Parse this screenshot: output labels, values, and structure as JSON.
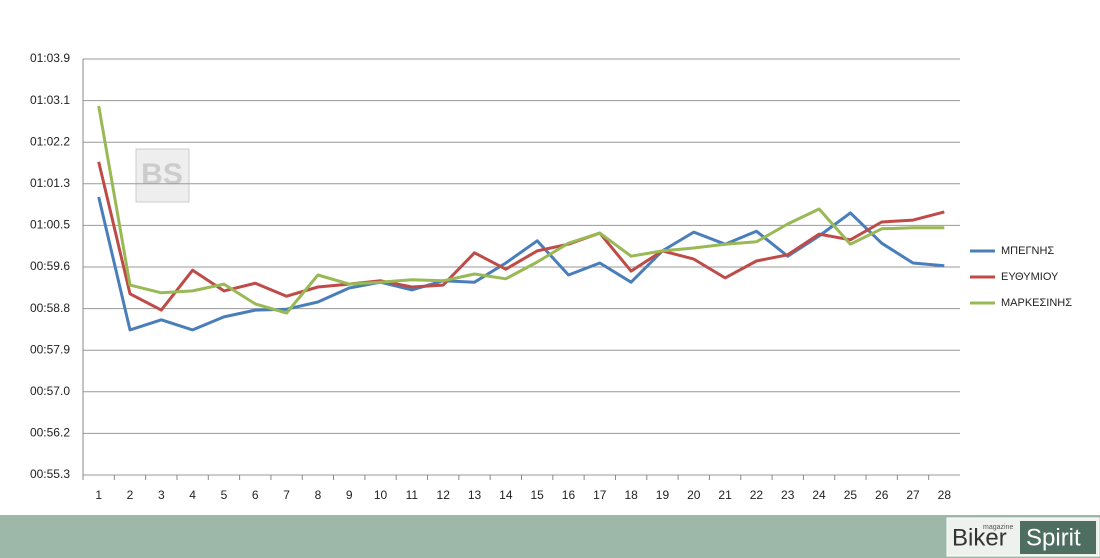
{
  "chart_data": {
    "type": "line",
    "categories": [
      "1",
      "2",
      "3",
      "4",
      "5",
      "6",
      "7",
      "8",
      "9",
      "10",
      "11",
      "12",
      "13",
      "14",
      "15",
      "16",
      "17",
      "18",
      "19",
      "20",
      "21",
      "22",
      "23",
      "24",
      "25",
      "26",
      "27",
      "28"
    ],
    "series": [
      {
        "name": "ΜΠΕΓΝΗΣ",
        "color": "#4a7ebb",
        "values": [
          61.07,
          58.31,
          58.52,
          58.31,
          58.58,
          58.72,
          58.74,
          58.89,
          59.18,
          59.3,
          59.14,
          59.33,
          59.3,
          59.7,
          60.16,
          59.45,
          59.7,
          59.3,
          59.95,
          60.34,
          60.09,
          60.36,
          59.84,
          60.26,
          60.74,
          60.11,
          59.7,
          59.64
        ]
      },
      {
        "name": "ΕΥΘΥΜΙΟΥ",
        "color": "#be4b48",
        "values": [
          61.8,
          59.06,
          58.72,
          59.55,
          59.12,
          59.28,
          59.01,
          59.2,
          59.26,
          59.33,
          59.2,
          59.24,
          59.91,
          59.57,
          59.95,
          60.09,
          60.32,
          59.53,
          59.95,
          59.78,
          59.39,
          59.74,
          59.87,
          60.3,
          60.18,
          60.55,
          60.59,
          60.76
        ]
      },
      {
        "name": "ΜΑΡΚΕΣΙΝΗΣ",
        "color": "#98b954",
        "values": [
          62.96,
          59.24,
          59.08,
          59.12,
          59.26,
          58.85,
          58.66,
          59.45,
          59.26,
          59.3,
          59.35,
          59.33,
          59.47,
          59.37,
          59.72,
          60.11,
          60.32,
          59.84,
          59.95,
          60.01,
          60.09,
          60.14,
          60.51,
          60.82,
          60.09,
          60.41,
          60.43,
          60.43
        ]
      }
    ],
    "ylim": [
      55.296,
      63.936
    ],
    "yticks": [
      {
        "value": 55.296,
        "label": "00:55.3"
      },
      {
        "value": 56.16,
        "label": "00:56.2"
      },
      {
        "value": 57.024,
        "label": "00:57.0"
      },
      {
        "value": 57.888,
        "label": "00:57.9"
      },
      {
        "value": 58.752,
        "label": "00:58.8"
      },
      {
        "value": 59.616,
        "label": "00:59.6"
      },
      {
        "value": 60.48,
        "label": "01:00.5"
      },
      {
        "value": 61.344,
        "label": "01:01.3"
      },
      {
        "value": 62.208,
        "label": "01:02.2"
      },
      {
        "value": 63.072,
        "label": "01:03.1"
      },
      {
        "value": 63.936,
        "label": "01:03.9"
      }
    ],
    "grid": true,
    "legend": "right"
  },
  "branding": {
    "watermark": "BS",
    "logo_left": "Biker",
    "logo_right": "Spirit",
    "tagline": "magazine"
  }
}
